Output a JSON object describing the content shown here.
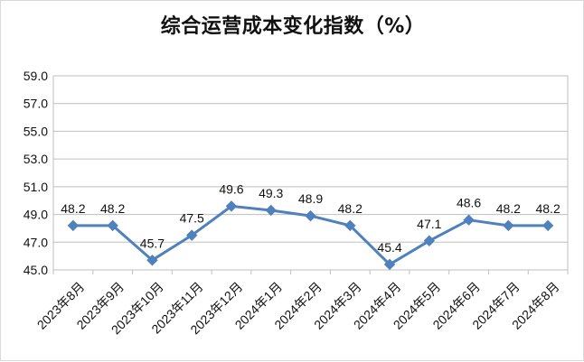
{
  "chart_data": {
    "type": "line",
    "title": "综合运营成本变化指数（%）",
    "categories": [
      "2023年8月",
      "2023年9月",
      "2023年10月",
      "2023年11月",
      "2023年12月",
      "2024年1月",
      "2024年2月",
      "2024年3月",
      "2024年4月",
      "2024年5月",
      "2024年6月",
      "2024年7月",
      "2024年8月"
    ],
    "values": [
      48.2,
      48.2,
      45.7,
      47.5,
      49.6,
      49.3,
      48.9,
      48.2,
      45.4,
      47.1,
      48.6,
      48.2,
      48.2
    ],
    "value_labels": [
      "48.2",
      "48.2",
      "45.7",
      "47.5",
      "49.6",
      "49.3",
      "48.9",
      "48.2",
      "45.4",
      "47.1",
      "48.6",
      "48.2",
      "48.2"
    ],
    "ylim": [
      45.0,
      59.0
    ],
    "yticks": [
      "45.0",
      "47.0",
      "49.0",
      "51.0",
      "53.0",
      "55.0",
      "57.0",
      "59.0"
    ],
    "grid": true,
    "legend": false,
    "line_color": "#4f81bd",
    "marker": "diamond"
  }
}
